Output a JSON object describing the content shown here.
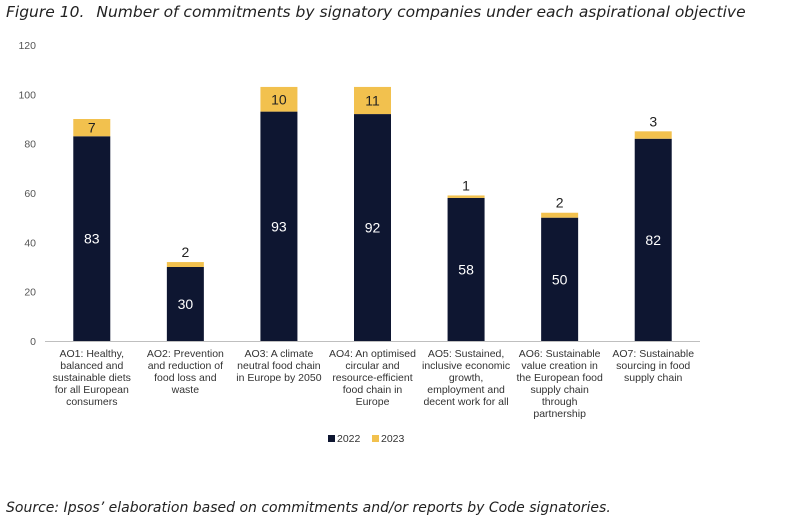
{
  "figure": {
    "label": "Figure 10.",
    "title": "Number of commitments by signatory companies under each aspirational objective",
    "source": "Source: Ipsos’ elaboration based on commitments and/or reports by Code signatories."
  },
  "colors": {
    "series_2022": "#0e1631",
    "series_2023": "#f2c14e"
  },
  "chart_data": {
    "type": "bar",
    "stacked": true,
    "title": "Number of commitments by signatory companies under each aspirational objective",
    "xlabel": "",
    "ylabel": "",
    "ylim": [
      0,
      120
    ],
    "yticks": [
      0,
      20,
      40,
      60,
      80,
      100,
      120
    ],
    "grid": false,
    "legend_position": "bottom",
    "categories": [
      [
        "AO1: Healthy,",
        "balanced and",
        "sustainable diets",
        "for all European",
        "consumers"
      ],
      [
        "AO2: Prevention",
        "and reduction of",
        "food loss and",
        "waste"
      ],
      [
        "AO3: A climate",
        "neutral food chain",
        "in Europe by 2050"
      ],
      [
        "AO4: An optimised",
        "circular and",
        "resource-efficient",
        "food chain in",
        "Europe"
      ],
      [
        "AO5: Sustained,",
        "inclusive economic",
        "growth,",
        "employment and",
        "decent work for all"
      ],
      [
        "AO6: Sustainable",
        "value creation in",
        "the European food",
        "supply chain",
        "through",
        "partnership"
      ],
      [
        "AO7: Sustainable",
        "sourcing in food",
        "supply chain"
      ]
    ],
    "series": [
      {
        "name": "2022",
        "values": [
          83,
          30,
          93,
          92,
          58,
          50,
          82
        ]
      },
      {
        "name": "2023",
        "values": [
          7,
          2,
          10,
          11,
          1,
          2,
          3
        ]
      }
    ]
  }
}
